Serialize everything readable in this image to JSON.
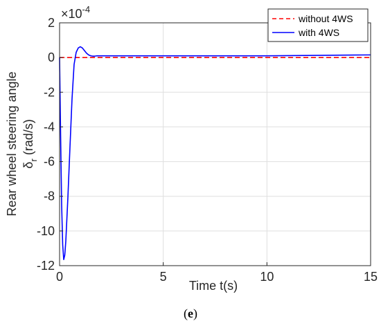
{
  "chart_data": {
    "type": "line",
    "xlabel": "Time t(s)",
    "ylabel_line1": "Rear wheel steering angle",
    "ylabel_line2_main": "δ",
    "ylabel_line2_sub": "r",
    "ylabel_line2_unit": " (rad/s)",
    "xlim": [
      0,
      15
    ],
    "ylim": [
      -12,
      2
    ],
    "y_scale_exponent": "×10",
    "y_scale_power": "-4",
    "xticks": [
      0,
      5,
      10,
      15
    ],
    "yticks": [
      2,
      0,
      -2,
      -4,
      -6,
      -8,
      -10,
      -12
    ],
    "grid": true,
    "legend_position": "top-right",
    "series": [
      {
        "name": "without 4WS",
        "color": "#ff0000",
        "style": "dashed",
        "x": [
          0,
          15
        ],
        "y": [
          0,
          0
        ]
      },
      {
        "name": "with 4WS",
        "color": "#0000ff",
        "style": "solid",
        "x": [
          0,
          0.05,
          0.1,
          0.15,
          0.2,
          0.25,
          0.3,
          0.4,
          0.5,
          0.6,
          0.7,
          0.8,
          0.9,
          1.0,
          1.1,
          1.2,
          1.3,
          1.4,
          1.5,
          1.6,
          1.7,
          1.8,
          2.0,
          2.2,
          2.5,
          3,
          5,
          8,
          10,
          15
        ],
        "y": [
          0,
          -4.5,
          -8.5,
          -10.8,
          -11.65,
          -11.4,
          -10.6,
          -8.1,
          -5.2,
          -2.4,
          -0.4,
          0.3,
          0.55,
          0.62,
          0.55,
          0.4,
          0.25,
          0.15,
          0.1,
          0.08,
          0.08,
          0.1,
          0.1,
          0.1,
          0.1,
          0.1,
          0.1,
          0.1,
          0.1,
          0.15
        ]
      }
    ]
  },
  "caption": "(e)",
  "caption_open": "(",
  "caption_letter": "e",
  "caption_close": ")"
}
